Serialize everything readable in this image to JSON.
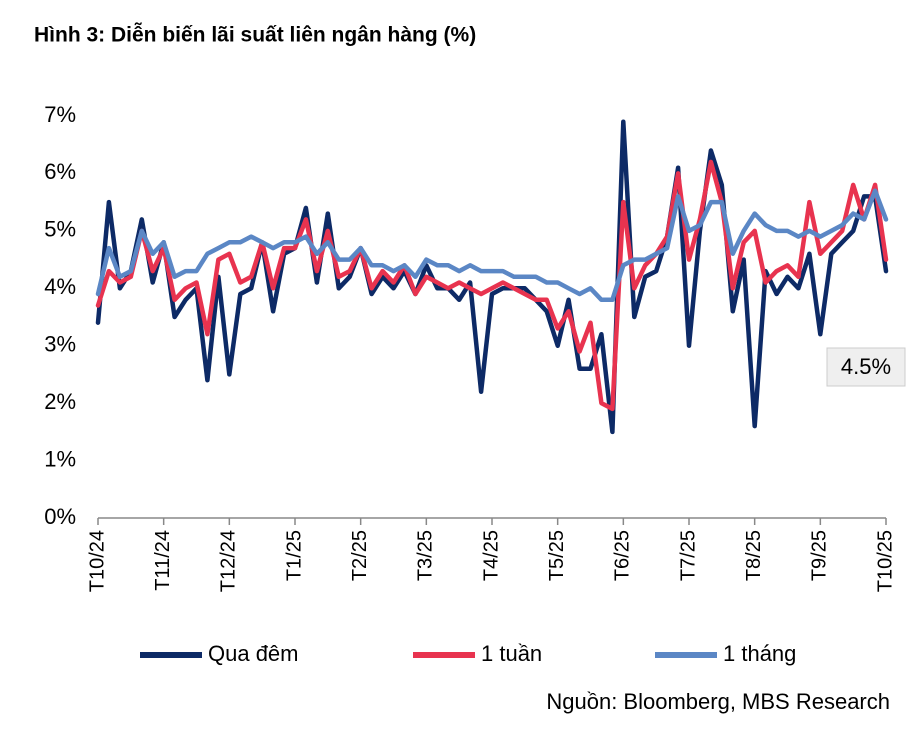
{
  "chart_data": {
    "type": "line",
    "title": "Hình 3: Diễn biến lãi suất liên ngân hàng (%)",
    "source": "Nguồn: Bloomberg, MBS Research",
    "annotation": "4.5%",
    "categories": [
      "T10/24",
      null,
      null,
      null,
      null,
      null,
      "T11/24",
      null,
      null,
      null,
      null,
      null,
      "T12/24",
      null,
      null,
      null,
      null,
      null,
      "T1/25",
      null,
      null,
      null,
      null,
      null,
      "T2/25",
      null,
      null,
      null,
      null,
      null,
      "T3/25",
      null,
      null,
      null,
      null,
      null,
      "T4/25",
      null,
      null,
      null,
      null,
      null,
      "T5/25",
      null,
      null,
      null,
      null,
      null,
      "T6/25",
      null,
      null,
      null,
      null,
      null,
      "T7/25",
      null,
      null,
      null,
      null,
      null,
      "T8/25",
      null,
      null,
      null,
      null,
      null,
      "T9/25",
      null,
      null,
      null,
      null,
      null,
      "T10/25"
    ],
    "series": [
      {
        "name": "Qua đêm",
        "color": "#0d2a66",
        "values": [
          3.4,
          5.5,
          4.0,
          4.3,
          5.2,
          4.1,
          4.8,
          3.5,
          3.8,
          4.0,
          2.4,
          4.2,
          2.5,
          3.9,
          4.0,
          4.8,
          3.6,
          4.6,
          4.7,
          5.4,
          4.1,
          5.3,
          4.0,
          4.2,
          4.7,
          3.9,
          4.2,
          4.0,
          4.3,
          3.9,
          4.4,
          4.0,
          4.0,
          3.8,
          4.1,
          2.2,
          3.9,
          4.0,
          4.0,
          4.0,
          3.8,
          3.6,
          3.0,
          3.8,
          2.6,
          2.6,
          3.2,
          1.5,
          6.9,
          3.5,
          4.2,
          4.3,
          4.9,
          6.1,
          3.0,
          5.0,
          6.4,
          5.8,
          3.6,
          4.5,
          1.6,
          4.3,
          3.9,
          4.2,
          4.0,
          4.6,
          3.2,
          4.6,
          4.8,
          5.0,
          5.6,
          5.6,
          4.3
        ]
      },
      {
        "name": "1 tuần",
        "color": "#e8334f",
        "values": [
          3.7,
          4.3,
          4.1,
          4.2,
          5.0,
          4.3,
          4.7,
          3.8,
          4.0,
          4.1,
          3.2,
          4.5,
          4.6,
          4.1,
          4.2,
          4.8,
          4.0,
          4.7,
          4.7,
          5.2,
          4.3,
          5.0,
          4.2,
          4.3,
          4.7,
          4.0,
          4.3,
          4.1,
          4.4,
          3.9,
          4.2,
          4.1,
          4.0,
          4.1,
          4.0,
          3.9,
          4.0,
          4.1,
          4.0,
          3.9,
          3.8,
          3.8,
          3.3,
          3.6,
          2.9,
          3.4,
          2.0,
          1.9,
          5.5,
          4.0,
          4.4,
          4.6,
          4.9,
          6.0,
          4.5,
          5.2,
          6.2,
          5.5,
          4.0,
          4.8,
          5.0,
          4.1,
          4.3,
          4.4,
          4.2,
          5.5,
          4.6,
          4.8,
          5.0,
          5.8,
          5.2,
          5.8,
          4.5
        ]
      },
      {
        "name": "1 tháng",
        "color": "#5b87c5",
        "values": [
          3.9,
          4.7,
          4.2,
          4.3,
          5.0,
          4.6,
          4.8,
          4.2,
          4.3,
          4.3,
          4.6,
          4.7,
          4.8,
          4.8,
          4.9,
          4.8,
          4.7,
          4.8,
          4.8,
          4.9,
          4.6,
          4.8,
          4.5,
          4.5,
          4.7,
          4.4,
          4.4,
          4.3,
          4.4,
          4.2,
          4.5,
          4.4,
          4.4,
          4.3,
          4.4,
          4.3,
          4.3,
          4.3,
          4.2,
          4.2,
          4.2,
          4.1,
          4.1,
          4.0,
          3.9,
          4.0,
          3.8,
          3.8,
          4.4,
          4.5,
          4.5,
          4.6,
          4.7,
          5.6,
          5.0,
          5.1,
          5.5,
          5.5,
          4.6,
          5.0,
          5.3,
          5.1,
          5.0,
          5.0,
          4.9,
          5.0,
          4.9,
          5.0,
          5.1,
          5.3,
          5.2,
          5.7,
          5.2
        ]
      }
    ],
    "ylim": [
      0,
      7
    ],
    "yticks": [
      {
        "value": 0,
        "label": "0%"
      },
      {
        "value": 1,
        "label": "1%"
      },
      {
        "value": 2,
        "label": "2%"
      },
      {
        "value": 3,
        "label": "3%"
      },
      {
        "value": 4,
        "label": "4%"
      },
      {
        "value": 5,
        "label": "5%"
      },
      {
        "value": 6,
        "label": "6%"
      },
      {
        "value": 7,
        "label": "7%"
      }
    ],
    "grid": false,
    "legend": "bottom"
  }
}
